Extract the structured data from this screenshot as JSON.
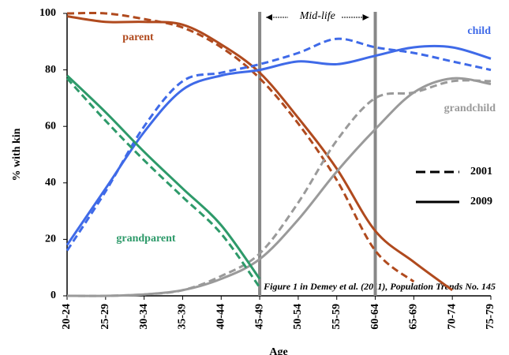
{
  "chart_data": {
    "type": "line",
    "y_label": "% with kin",
    "x_label": "Age",
    "note": "Figure 1 in Demey et al. (2011), Population Trends No. 145",
    "midlife": {
      "label": "Mid-life",
      "from": 5,
      "to": 8
    },
    "categories": [
      "20-24",
      "25-29",
      "30-34",
      "35-39",
      "40-44",
      "45-49",
      "50-54",
      "55-59",
      "60-64",
      "65-69",
      "70-74",
      "75-79"
    ],
    "ylim": [
      0,
      100
    ],
    "yticks": [
      0,
      20,
      40,
      60,
      80,
      100
    ],
    "legend": [
      {
        "label": "2001",
        "dashed": true
      },
      {
        "label": "2009",
        "dashed": false
      }
    ],
    "series": [
      {
        "name": "parent",
        "color": "#b04a1e",
        "lines": [
          {
            "values": [
              100,
              100,
              98,
              95,
              88,
              77,
              61,
              41,
              16,
              5,
              null,
              null
            ]
          },
          {
            "values": [
              99,
              97,
              97,
              96,
              89,
              79,
              63,
              45,
              23,
              12,
              2,
              null
            ]
          }
        ]
      },
      {
        "name": "child",
        "color": "#3f6ae8",
        "lines": [
          {
            "values": [
              16,
              37,
              60,
              76,
              79,
              82,
              86,
              91,
              88,
              86,
              83,
              80
            ]
          },
          {
            "values": [
              18,
              38,
              58,
              73,
              78,
              80,
              83,
              82,
              85,
              88,
              88,
              84
            ]
          }
        ]
      },
      {
        "name": "grandchild",
        "color": "#9a9a9a",
        "lines": [
          {
            "values": [
              0,
              0,
              0.5,
              2,
              7,
              15,
              33,
              55,
              70,
              72,
              76,
              76
            ]
          },
          {
            "values": [
              0,
              0,
              0.5,
              2,
              6,
              13,
              27,
              44,
              59,
              72,
              77,
              75
            ]
          }
        ]
      },
      {
        "name": "grandparent",
        "color": "#2e9a6a",
        "lines": [
          {
            "values": [
              77,
              62,
              48,
              35,
              22,
              3,
              null,
              null,
              null,
              null,
              null,
              null
            ]
          },
          {
            "values": [
              78,
              65,
              51,
              38,
              25,
              6,
              null,
              null,
              null,
              null,
              null,
              null
            ]
          }
        ]
      }
    ]
  }
}
